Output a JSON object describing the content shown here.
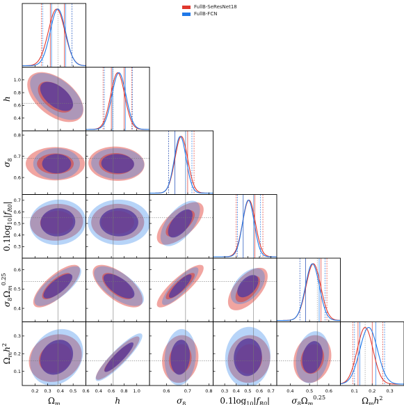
{
  "chart_data": {
    "type": "corner",
    "legend": [
      {
        "label": "FullB-SeResNet18",
        "color": "#e0382e"
      },
      {
        "label": "FullB-FCN",
        "color": "#1f78e8"
      }
    ],
    "fill_colors": {
      "red": "#e0382e",
      "blue": "#1f78e8",
      "overlap": "#5a3d9c"
    },
    "parameters": [
      {
        "key": "om",
        "label": "Ω_m",
        "display": "Ωm",
        "truth": 0.38,
        "range": [
          0.1,
          0.6
        ],
        "ticks": [
          0.2,
          0.3,
          0.4,
          0.5,
          0.6
        ],
        "tick_labels": [
          "0.2",
          "0.3",
          "0.4",
          "0.5",
          "0.6"
        ]
      },
      {
        "key": "h",
        "label": "h",
        "display": "h",
        "truth": 0.63,
        "range": [
          0.2,
          1.2
        ],
        "ticks": [
          0.4,
          0.6,
          0.8,
          1.0
        ],
        "tick_labels": [
          "0.4",
          "0.6",
          "0.8",
          "1.0"
        ]
      },
      {
        "key": "s8",
        "label": "σ_8",
        "display": "σ8",
        "truth": 0.69,
        "range": [
          0.52,
          0.82
        ],
        "ticks": [
          0.6,
          0.7,
          0.8
        ],
        "tick_labels": [
          "0.6",
          "0.7",
          "0.8"
        ]
      },
      {
        "key": "fr0",
        "label": "0.1log10|fR0|",
        "display": "0.1log10|fR0|",
        "truth": 0.55,
        "range": [
          0.2,
          0.75
        ],
        "ticks": [
          0.3,
          0.4,
          0.5,
          0.6,
          0.7
        ],
        "tick_labels": [
          "0.3",
          "0.4",
          "0.5",
          "0.6",
          "0.7"
        ]
      },
      {
        "key": "s8om",
        "label": "σ8Ωm^0.25",
        "display": "σ8Ωm0.25",
        "truth": 0.54,
        "range": [
          0.33,
          0.66
        ],
        "ticks": [
          0.4,
          0.5,
          0.6
        ],
        "tick_labels": [
          "0.4",
          "0.5",
          "0.6"
        ]
      },
      {
        "key": "omh2",
        "label": "Ωmh^2",
        "display": "Ωmh2",
        "truth": 0.16,
        "range": [
          0.02,
          0.38
        ],
        "ticks": [
          0.1,
          0.2,
          0.3
        ],
        "tick_labels": [
          "0.1",
          "0.2",
          "0.3"
        ]
      }
    ],
    "marginals": {
      "red": {
        "mu": [
          0.37,
          0.7,
          0.67,
          0.51,
          0.52,
          0.16
        ],
        "sigma": [
          0.065,
          0.11,
          0.03,
          0.055,
          0.038,
          0.045
        ],
        "bounds68": [
          [
            0.32,
            0.43
          ],
          [
            0.6,
            0.8
          ],
          [
            0.64,
            0.7
          ],
          [
            0.46,
            0.56
          ],
          [
            0.48,
            0.56
          ],
          [
            0.12,
            0.2
          ]
        ],
        "bounds95": [
          [
            0.25,
            0.49
          ],
          [
            0.47,
            0.92
          ],
          [
            0.61,
            0.73
          ],
          [
            0.4,
            0.63
          ],
          [
            0.45,
            0.59
          ],
          [
            0.09,
            0.26
          ]
        ]
      },
      "blue": {
        "mu": [
          0.38,
          0.72,
          0.665,
          0.505,
          0.515,
          0.18
        ],
        "sigma": [
          0.06,
          0.11,
          0.028,
          0.05,
          0.036,
          0.05
        ],
        "bounds68": [
          [
            0.33,
            0.44
          ],
          [
            0.62,
            0.82
          ],
          [
            0.64,
            0.69
          ],
          [
            0.46,
            0.55
          ],
          [
            0.48,
            0.55
          ],
          [
            0.13,
            0.22
          ]
        ],
        "bounds95": [
          [
            0.26,
            0.49
          ],
          [
            0.49,
            0.93
          ],
          [
            0.61,
            0.72
          ],
          [
            0.41,
            0.61
          ],
          [
            0.45,
            0.58
          ],
          [
            0.1,
            0.27
          ]
        ]
      }
    },
    "contours": [
      {
        "row": 1,
        "col": 0,
        "red": {
          "cx": 0.36,
          "cy": 0.73,
          "sx": 0.09,
          "sy": 0.16,
          "rho": -0.5
        },
        "blue": {
          "cx": 0.37,
          "cy": 0.74,
          "sx": 0.085,
          "sy": 0.15,
          "rho": -0.55
        }
      },
      {
        "row": 2,
        "col": 0,
        "red": {
          "cx": 0.36,
          "cy": 0.665,
          "sx": 0.095,
          "sy": 0.032,
          "rho": 0.0
        },
        "blue": {
          "cx": 0.37,
          "cy": 0.665,
          "sx": 0.075,
          "sy": 0.03,
          "rho": 0.0
        }
      },
      {
        "row": 2,
        "col": 1,
        "red": {
          "cx": 0.68,
          "cy": 0.665,
          "sx": 0.18,
          "sy": 0.033,
          "rho": -0.05
        },
        "blue": {
          "cx": 0.7,
          "cy": 0.665,
          "sx": 0.17,
          "sy": 0.03,
          "rho": -0.05
        }
      },
      {
        "row": 3,
        "col": 0,
        "red": {
          "cx": 0.37,
          "cy": 0.51,
          "sx": 0.085,
          "sy": 0.065,
          "rho": 0.05
        },
        "blue": {
          "cx": 0.38,
          "cy": 0.51,
          "sx": 0.09,
          "sy": 0.08,
          "rho": 0.05
        }
      },
      {
        "row": 3,
        "col": 1,
        "red": {
          "cx": 0.7,
          "cy": 0.51,
          "sx": 0.17,
          "sy": 0.065,
          "rho": 0.0
        },
        "blue": {
          "cx": 0.72,
          "cy": 0.51,
          "sx": 0.2,
          "sy": 0.08,
          "rho": 0.0
        }
      },
      {
        "row": 3,
        "col": 2,
        "red": {
          "cx": 0.665,
          "cy": 0.5,
          "sx": 0.045,
          "sy": 0.075,
          "rho": 0.65
        },
        "blue": {
          "cx": 0.665,
          "cy": 0.5,
          "sx": 0.038,
          "sy": 0.08,
          "rho": 0.6
        }
      },
      {
        "row": 4,
        "col": 0,
        "red": {
          "cx": 0.37,
          "cy": 0.515,
          "sx": 0.075,
          "sy": 0.045,
          "rho": 0.75
        },
        "blue": {
          "cx": 0.38,
          "cy": 0.515,
          "sx": 0.075,
          "sy": 0.042,
          "rho": 0.75
        }
      },
      {
        "row": 4,
        "col": 1,
        "red": {
          "cx": 0.7,
          "cy": 0.515,
          "sx": 0.16,
          "sy": 0.045,
          "rho": -0.65
        },
        "blue": {
          "cx": 0.72,
          "cy": 0.515,
          "sx": 0.16,
          "sy": 0.042,
          "rho": -0.65
        }
      },
      {
        "row": 4,
        "col": 2,
        "red": {
          "cx": 0.665,
          "cy": 0.515,
          "sx": 0.045,
          "sy": 0.045,
          "rho": 0.85
        },
        "blue": {
          "cx": 0.665,
          "cy": 0.515,
          "sx": 0.035,
          "sy": 0.04,
          "rho": 0.85
        }
      },
      {
        "row": 4,
        "col": 3,
        "red": {
          "cx": 0.5,
          "cy": 0.5,
          "sx": 0.07,
          "sy": 0.045,
          "rho": 0.6
        },
        "blue": {
          "cx": 0.5,
          "cy": 0.515,
          "sx": 0.06,
          "sy": 0.038,
          "rho": 0.5
        }
      },
      {
        "row": 5,
        "col": 0,
        "red": {
          "cx": 0.36,
          "cy": 0.175,
          "sx": 0.085,
          "sy": 0.055,
          "rho": 0.15
        },
        "blue": {
          "cx": 0.37,
          "cy": 0.18,
          "sx": 0.085,
          "sy": 0.065,
          "rho": 0.2
        }
      },
      {
        "row": 5,
        "col": 1,
        "red": {
          "cx": 0.7,
          "cy": 0.175,
          "sx": 0.14,
          "sy": 0.05,
          "rho": 0.9
        },
        "blue": {
          "cx": 0.72,
          "cy": 0.18,
          "sx": 0.15,
          "sy": 0.055,
          "rho": 0.9
        }
      },
      {
        "row": 5,
        "col": 2,
        "red": {
          "cx": 0.665,
          "cy": 0.17,
          "sx": 0.035,
          "sy": 0.055,
          "rho": 0.1
        },
        "blue": {
          "cx": 0.665,
          "cy": 0.18,
          "sx": 0.03,
          "sy": 0.065,
          "rho": 0.1
        }
      },
      {
        "row": 5,
        "col": 3,
        "red": {
          "cx": 0.51,
          "cy": 0.17,
          "sx": 0.075,
          "sy": 0.055,
          "rho": 0.05
        },
        "blue": {
          "cx": 0.5,
          "cy": 0.18,
          "sx": 0.08,
          "sy": 0.07,
          "rho": 0.05
        }
      },
      {
        "row": 5,
        "col": 4,
        "red": {
          "cx": 0.515,
          "cy": 0.17,
          "sx": 0.04,
          "sy": 0.055,
          "rho": 0.15
        },
        "blue": {
          "cx": 0.515,
          "cy": 0.18,
          "sx": 0.035,
          "sy": 0.06,
          "rho": 0.2
        }
      }
    ]
  }
}
